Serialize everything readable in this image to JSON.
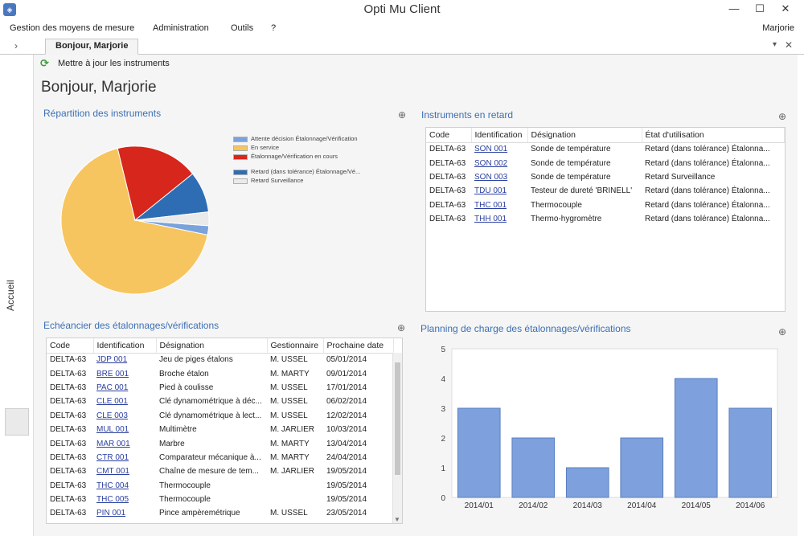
{
  "window": {
    "title": "Opti Mu Client",
    "icon": "app-logo-icon",
    "minimize": "—",
    "maximize": "☐",
    "close": "✕"
  },
  "menu": {
    "items": [
      "Gestion des moyens de mesure",
      "Administration",
      "Outils",
      "?"
    ],
    "user": "Marjorie"
  },
  "tabs": {
    "home": "Bonjour, Marjorie",
    "left_arrow": "›",
    "dropdown": "▾",
    "close": "✕"
  },
  "rail": {
    "accueil": "Accueil"
  },
  "toolbar": {
    "refresh_label": "Mettre à jour les instruments"
  },
  "greeting": "Bonjour, Marjorie",
  "panels": {
    "repartition": "Répartition des instruments",
    "retard": "Instruments en retard",
    "echeancier": "Echéancier des étalonnages/vérifications",
    "planning": "Planning de charge des étalonnages/vérifications"
  },
  "repartition_legend": [
    {
      "label": "Attente décision Étalonnage/Vérification",
      "color": "#7aa3dc"
    },
    {
      "label": "En service",
      "color": "#f7c55f"
    },
    {
      "label": "Étalonnage/Vérification en cours",
      "color": "#d7261b"
    },
    {
      "label": "Retard (dans tolérance) Étalonnage/Vé...",
      "color": "#2e6db4"
    },
    {
      "label": "Retard Surveillance",
      "color": "#eaeaea"
    }
  ],
  "retard": {
    "columns": [
      "Code",
      "Identification",
      "Désignation",
      "État d'utilisation"
    ],
    "rows": [
      [
        "DELTA-63",
        "SON 001",
        "Sonde de température",
        "Retard (dans tolérance) Étalonna..."
      ],
      [
        "DELTA-63",
        "SON 002",
        "Sonde de température",
        "Retard (dans tolérance) Étalonna..."
      ],
      [
        "DELTA-63",
        "SON 003",
        "Sonde de température",
        "Retard Surveillance"
      ],
      [
        "DELTA-63",
        "TDU 001",
        "Testeur de dureté 'BRINELL'",
        "Retard (dans tolérance) Étalonna..."
      ],
      [
        "DELTA-63",
        "THC 001",
        "Thermocouple",
        "Retard (dans tolérance) Étalonna..."
      ],
      [
        "DELTA-63",
        "THH 001",
        "Thermo-hygromètre",
        "Retard (dans tolérance) Étalonna..."
      ]
    ]
  },
  "echeancier": {
    "columns": [
      "Code",
      "Identification",
      "Désignation",
      "Gestionnaire",
      "Prochaine date"
    ],
    "rows": [
      [
        "DELTA-63",
        "JDP 001",
        "Jeu de piges étalons",
        "M. USSEL",
        "05/01/2014"
      ],
      [
        "DELTA-63",
        "BRE 001",
        "Broche étalon",
        "M. MARTY",
        "09/01/2014"
      ],
      [
        "DELTA-63",
        "PAC 001",
        "Pied à coulisse",
        "M. USSEL",
        "17/01/2014"
      ],
      [
        "DELTA-63",
        "CLE 001",
        "Clé dynamométrique à déc...",
        "M. USSEL",
        "06/02/2014"
      ],
      [
        "DELTA-63",
        "CLE 003",
        "Clé dynamométrique à lect...",
        "M. USSEL",
        "12/02/2014"
      ],
      [
        "DELTA-63",
        "MUL 001",
        "Multimètre",
        "M. JARLIER",
        "10/03/2014"
      ],
      [
        "DELTA-63",
        "MAR 001",
        "Marbre",
        "M. MARTY",
        "13/04/2014"
      ],
      [
        "DELTA-63",
        "CTR 001",
        "Comparateur mécanique à...",
        "M. MARTY",
        "24/04/2014"
      ],
      [
        "DELTA-63",
        "CMT 001",
        "Chaîne de mesure de tem...",
        "M. JARLIER",
        "19/05/2014"
      ],
      [
        "DELTA-63",
        "THC 004",
        "Thermocouple",
        "",
        "19/05/2014"
      ],
      [
        "DELTA-63",
        "THC 005",
        "Thermocouple",
        "",
        "19/05/2014"
      ],
      [
        "DELTA-63",
        "PIN 001",
        "Pince ampèremétrique",
        "M. USSEL",
        "23/05/2014"
      ]
    ]
  },
  "chart_data": [
    {
      "type": "pie",
      "title": "Répartition des instruments",
      "categories": [
        "Attente décision Étalonnage/Vérification",
        "En service",
        "Étalonnage/Vérification en cours",
        "Retard (dans tolérance) Étalonnage/Vé...",
        "Retard Surveillance"
      ],
      "values": [
        2,
        68,
        18,
        9,
        3
      ],
      "colors": [
        "#7aa3dc",
        "#f7c55f",
        "#d7261b",
        "#2e6db4",
        "#eaeaea"
      ],
      "legend": "right"
    },
    {
      "type": "bar",
      "title": "Planning de charge des étalonnages/vérifications",
      "categories": [
        "2014/01",
        "2014/02",
        "2014/03",
        "2014/04",
        "2014/05",
        "2014/06"
      ],
      "values": [
        3,
        2,
        1,
        2,
        4,
        3
      ],
      "ylim": [
        0,
        5
      ],
      "yticks": [
        "0",
        "1",
        "2",
        "3",
        "4",
        "5"
      ],
      "color": "#7ea0dc",
      "grid": false
    }
  ]
}
